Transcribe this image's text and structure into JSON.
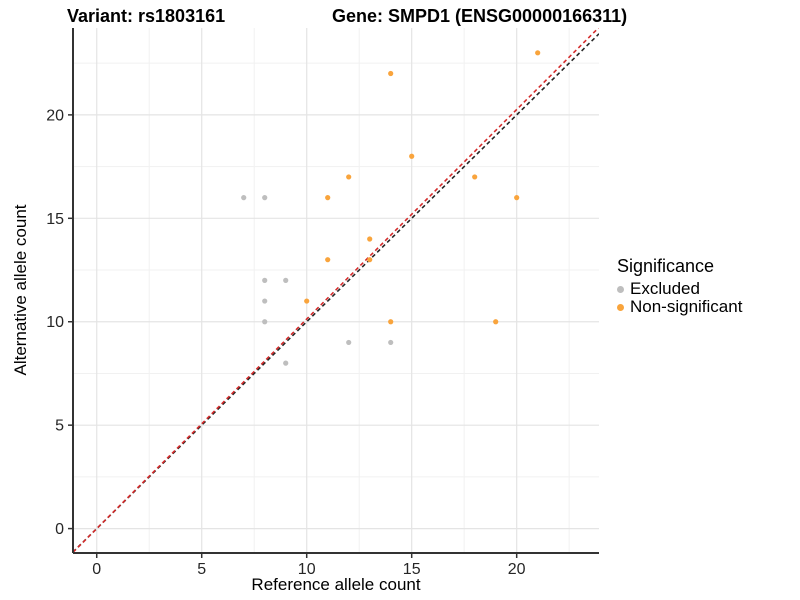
{
  "title": {
    "variant": "Variant: rs1803161",
    "gene": "Gene: SMPD1 (ENSG00000166311)"
  },
  "chart_data": {
    "type": "scatter",
    "title": "Variant: rs1803161 | Gene: SMPD1 (ENSG00000166311)",
    "xlabel": "Reference allele count",
    "ylabel": "Alternative allele count",
    "xlim": [
      -1.13,
      23.92
    ],
    "ylim": [
      -1.18,
      24.2
    ],
    "x_ticks": [
      0,
      5,
      10,
      15,
      20
    ],
    "y_ticks": [
      0,
      5,
      10,
      15,
      20
    ],
    "x_minor_ticks": [
      2.5,
      7.5,
      12.5,
      17.5,
      22.5
    ],
    "y_minor_ticks": [
      2.5,
      7.5,
      12.5,
      17.5,
      22.5
    ],
    "grid": true,
    "legend": {
      "title": "Significance",
      "position": "right"
    },
    "series": [
      {
        "name": "Excluded",
        "color": "#BEBEBE",
        "points": [
          [
            7,
            16
          ],
          [
            8,
            16
          ],
          [
            8,
            12
          ],
          [
            9,
            12
          ],
          [
            8,
            11
          ],
          [
            8,
            10
          ],
          [
            9,
            8
          ],
          [
            12,
            9
          ],
          [
            14,
            9
          ]
        ]
      },
      {
        "name": "Non-significant",
        "color": "#F9A43C",
        "points": [
          [
            10,
            11
          ],
          [
            11,
            13
          ],
          [
            11,
            16
          ],
          [
            12,
            17
          ],
          [
            13,
            13
          ],
          [
            13,
            14
          ],
          [
            14,
            10
          ],
          [
            14,
            22
          ],
          [
            15,
            18
          ],
          [
            18,
            17
          ],
          [
            19,
            10
          ],
          [
            20,
            16
          ],
          [
            21,
            23
          ]
        ]
      }
    ],
    "lines": [
      {
        "name": "identity-line",
        "slope": 1.0,
        "intercept": 0,
        "color": "#262626",
        "dashed": true
      },
      {
        "name": "expected-ratio-line",
        "slope": 1.013,
        "intercept": 0,
        "color": "#D42B2B",
        "dashed": true
      }
    ],
    "style": {
      "grid_major_color": "#E4E4E4",
      "grid_minor_color": "#F1F1F1",
      "axis_line_color": "#333333",
      "tick_label_color": "#262626",
      "point_radius": 2.6
    }
  }
}
